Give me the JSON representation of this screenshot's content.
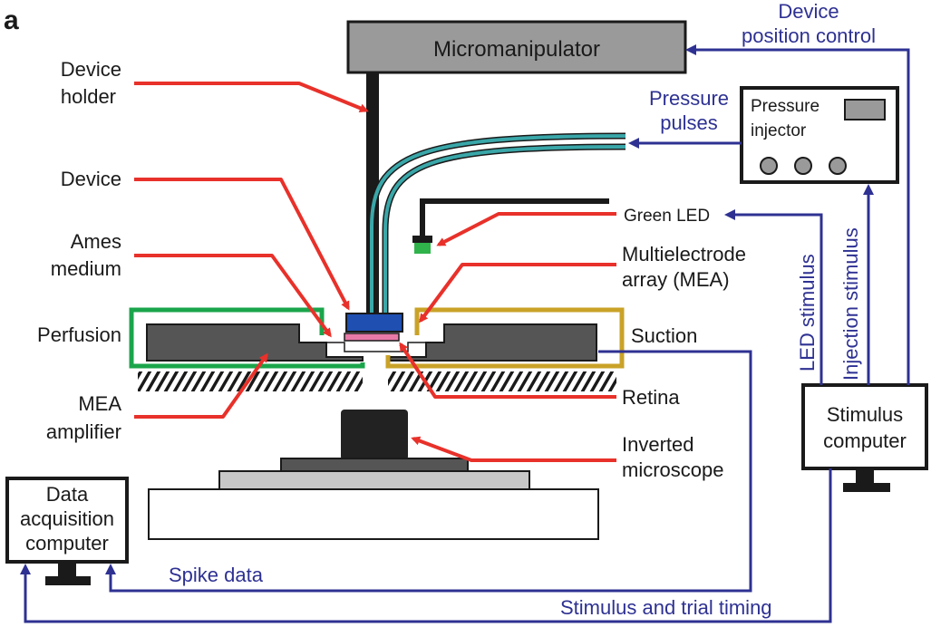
{
  "panel_letter": "a",
  "components": {
    "micromanipulator": "Micromanipulator",
    "pressure_injector": [
      "Pressure",
      "injector"
    ],
    "stimulus_computer": [
      "Stimulus",
      "computer"
    ],
    "data_acquisition_computer": [
      "Data",
      "acquisition",
      "computer"
    ]
  },
  "labels": {
    "device_holder": [
      "Device",
      "holder"
    ],
    "device": "Device",
    "ames_medium": [
      "Ames",
      "medium"
    ],
    "perfusion": "Perfusion",
    "mea_amplifier": [
      "MEA",
      "amplifier"
    ],
    "green_led": "Green LED",
    "mea": [
      "Multielectrode",
      "array (MEA)"
    ],
    "suction": "Suction",
    "retina": "Retina",
    "inverted_microscope": [
      "Inverted",
      "microscope"
    ]
  },
  "signals": {
    "device_position_control": [
      "Device",
      "position control"
    ],
    "pressure_pulses": [
      "Pressure",
      "pulses"
    ],
    "led_stimulus": "LED stimulus",
    "injection_stimulus": "Injection stimulus",
    "spike_data": "Spike data",
    "stimulus_trial_timing": "Stimulus and trial timing"
  },
  "colors": {
    "arrow_red": "#e8312a",
    "signal_blue": "#2e3192",
    "perfusion_green": "#1aa54b",
    "suction_gold": "#c9a227",
    "tubing_teal": "#3aa7a9",
    "device_blue": "#1f4fb0",
    "retina_pink": "#e87aa8",
    "led_green": "#2fb34a",
    "component_gray": "#9a9a9a"
  }
}
